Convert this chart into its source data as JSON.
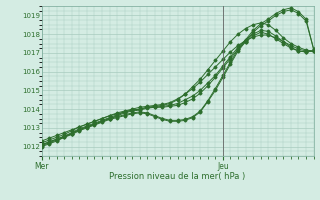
{
  "xlabel": "Pression niveau de la mer( hPa )",
  "ylim": [
    1011.5,
    1019.5
  ],
  "yticks": [
    1012,
    1013,
    1014,
    1015,
    1016,
    1017,
    1018,
    1019
  ],
  "xtick_labels": [
    "Mer",
    "Jeu"
  ],
  "xtick_positions": [
    0,
    24
  ],
  "vline_x": 24,
  "bg_color": "#d4ece3",
  "grid_color": "#a8cbbf",
  "line_color": "#2d6e2d",
  "text_color": "#2d6e2d",
  "spine_color": "#7aaa99",
  "total_steps": 37,
  "series": [
    [
      1012.0,
      1012.15,
      1012.3,
      1012.5,
      1012.7,
      1012.9,
      1013.05,
      1013.2,
      1013.35,
      1013.5,
      1013.65,
      1013.8,
      1013.9,
      1013.95,
      1014.05,
      1014.1,
      1014.15,
      1014.2,
      1014.3,
      1014.5,
      1014.7,
      1015.0,
      1015.4,
      1015.8,
      1016.3,
      1016.8,
      1017.3,
      1017.7,
      1018.0,
      1018.2,
      1018.15,
      1017.9,
      1017.6,
      1017.3,
      1017.1,
      1017.05,
      1017.1
    ],
    [
      1012.1,
      1012.25,
      1012.4,
      1012.55,
      1012.75,
      1012.95,
      1013.1,
      1013.25,
      1013.4,
      1013.55,
      1013.7,
      1013.85,
      1013.95,
      1014.0,
      1014.1,
      1014.15,
      1014.2,
      1014.3,
      1014.5,
      1014.8,
      1015.2,
      1015.6,
      1016.1,
      1016.6,
      1017.1,
      1017.6,
      1018.0,
      1018.3,
      1018.5,
      1018.6,
      1018.5,
      1018.2,
      1017.8,
      1017.5,
      1017.3,
      1017.15,
      1017.1
    ],
    [
      1012.2,
      1012.35,
      1012.5,
      1012.65,
      1012.85,
      1013.05,
      1013.2,
      1013.35,
      1013.5,
      1013.65,
      1013.75,
      1013.85,
      1013.95,
      1014.0,
      1014.1,
      1014.1,
      1014.1,
      1014.15,
      1014.2,
      1014.35,
      1014.55,
      1014.85,
      1015.25,
      1015.7,
      1016.2,
      1016.7,
      1017.2,
      1017.6,
      1017.9,
      1018.1,
      1018.0,
      1017.75,
      1017.5,
      1017.25,
      1017.1,
      1017.05,
      1017.1
    ],
    [
      1012.05,
      1012.2,
      1012.35,
      1012.5,
      1012.65,
      1012.85,
      1013.0,
      1013.15,
      1013.3,
      1013.45,
      1013.55,
      1013.65,
      1013.75,
      1013.8,
      1013.75,
      1013.6,
      1013.45,
      1013.35,
      1013.35,
      1013.4,
      1013.55,
      1013.85,
      1014.4,
      1015.0,
      1015.7,
      1016.4,
      1017.1,
      1017.6,
      1018.1,
      1018.45,
      1018.7,
      1019.0,
      1019.2,
      1019.3,
      1019.1,
      1018.7,
      1017.2
    ],
    [
      1012.1,
      1012.25,
      1012.4,
      1012.55,
      1012.7,
      1012.9,
      1013.05,
      1013.2,
      1013.35,
      1013.5,
      1013.6,
      1013.7,
      1013.8,
      1013.85,
      1013.8,
      1013.65,
      1013.5,
      1013.4,
      1013.4,
      1013.45,
      1013.6,
      1013.9,
      1014.45,
      1015.1,
      1015.8,
      1016.5,
      1017.2,
      1017.7,
      1018.2,
      1018.55,
      1018.8,
      1019.1,
      1019.3,
      1019.4,
      1019.2,
      1018.8,
      1017.2
    ],
    [
      1012.3,
      1012.45,
      1012.6,
      1012.75,
      1012.9,
      1013.05,
      1013.2,
      1013.35,
      1013.5,
      1013.65,
      1013.8,
      1013.9,
      1014.0,
      1014.1,
      1014.15,
      1014.2,
      1014.25,
      1014.35,
      1014.55,
      1014.8,
      1015.1,
      1015.45,
      1015.85,
      1016.25,
      1016.65,
      1017.05,
      1017.4,
      1017.65,
      1017.85,
      1017.95,
      1017.95,
      1017.8,
      1017.6,
      1017.4,
      1017.2,
      1017.1,
      1017.1
    ]
  ]
}
